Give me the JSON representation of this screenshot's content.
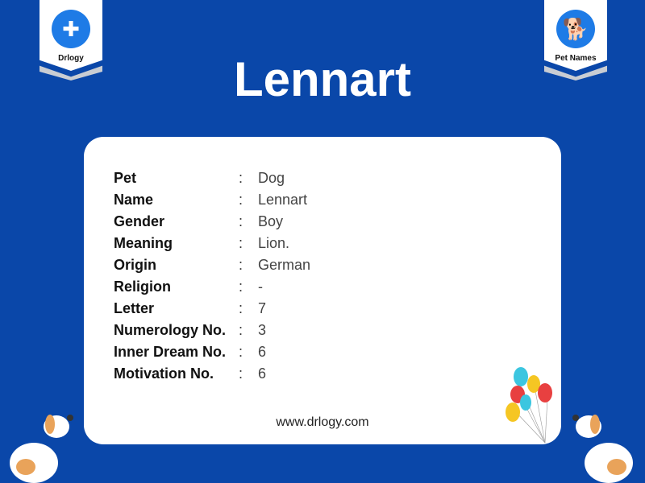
{
  "logos": {
    "left": "Drlogy",
    "right": "Pet Names"
  },
  "title": "Lennart",
  "details": [
    {
      "label": "Pet",
      "value": "Dog"
    },
    {
      "label": "Name",
      "value": "Lennart"
    },
    {
      "label": "Gender",
      "value": "Boy"
    },
    {
      "label": "Meaning",
      "value": "Lion."
    },
    {
      "label": "Origin",
      "value": "German"
    },
    {
      "label": "Religion",
      "value": "-"
    },
    {
      "label": "Letter",
      "value": "7"
    },
    {
      "label": "Numerology No.",
      "value": "3"
    },
    {
      "label": "Inner Dream No.",
      "value": "6"
    },
    {
      "label": "Motivation No.",
      "value": "6"
    }
  ],
  "separator": ":",
  "website": "www.drlogy.com",
  "colors": {
    "background": "#0a47a9",
    "card": "#ffffff",
    "badge_circle": "#1e7be6"
  }
}
